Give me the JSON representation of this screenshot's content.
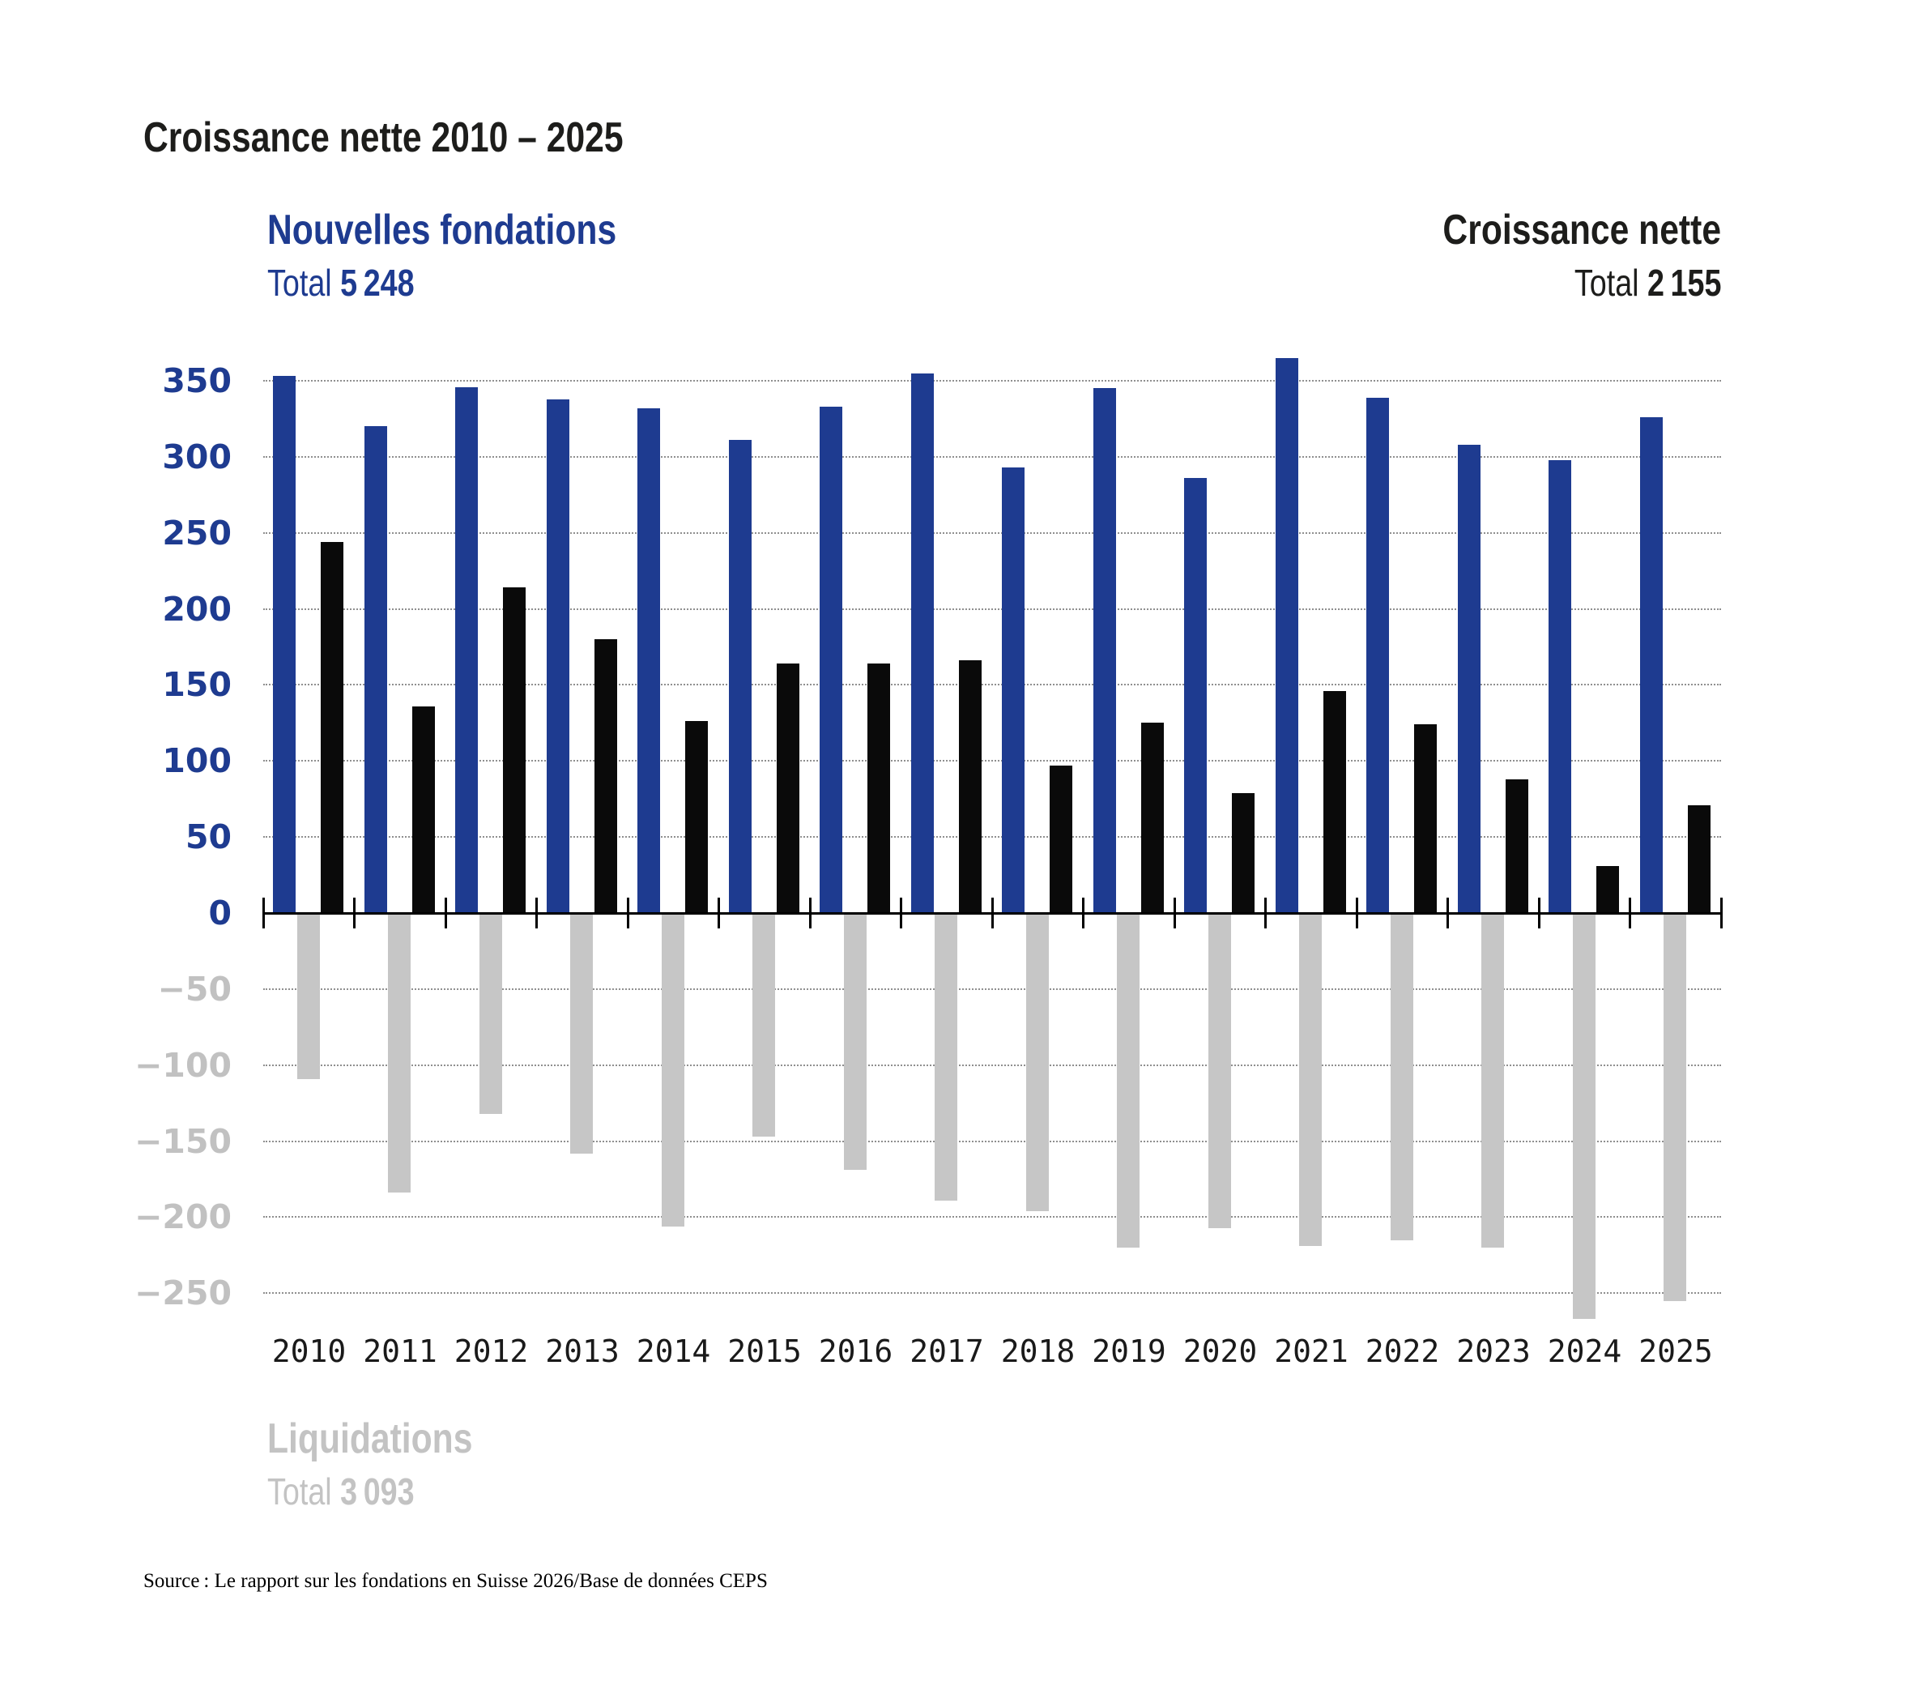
{
  "title": "Croissance nette 2010 – 2025",
  "legends": {
    "new": {
      "label": "Nouvelles fondations",
      "total_label": "Total",
      "total_value": "5 248"
    },
    "net": {
      "label": "Croissance nette",
      "total_label": "Total",
      "total_value": "2 155"
    },
    "liq": {
      "label": "Liquidations",
      "total_label": "Total",
      "total_value": "3 093"
    }
  },
  "source": "Source : Le rapport sur les fondations en Suisse 2026/Base de données CEPS",
  "colors": {
    "new": "#1e3b90",
    "net": "#0a0a0a",
    "liquidations": "#c6c6c6",
    "text_dark": "#1d1d1b",
    "liq_text": "#c3c3c3",
    "axis_label_positive": "#1e3b90",
    "axis_label_negative": "#c1c1c1",
    "grid": "#8f8f8f",
    "axis": "#000000",
    "year_label": "#1a1a1a"
  },
  "chart_data": {
    "type": "bar",
    "title": "Croissance nette 2010 – 2025",
    "xlabel": "",
    "ylabel": "",
    "grid": "horizontal-dotted",
    "ylim": [
      -270,
      365
    ],
    "yticks": [
      350,
      300,
      250,
      200,
      150,
      100,
      50,
      0,
      -50,
      -100,
      -150,
      -200,
      -250
    ],
    "categories": [
      "2010",
      "2011",
      "2012",
      "2013",
      "2014",
      "2015",
      "2016",
      "2017",
      "2018",
      "2019",
      "2020",
      "2021",
      "2022",
      "2023",
      "2024",
      "2025"
    ],
    "series": [
      {
        "name": "Nouvelles fondations",
        "key": "nouvelles-fondations",
        "color_key": "new",
        "total": 5248,
        "values": [
          353,
          320,
          346,
          338,
          332,
          311,
          333,
          355,
          293,
          345,
          286,
          365,
          339,
          308,
          298,
          326
        ]
      },
      {
        "name": "Liquidations",
        "key": "liquidations",
        "color_key": "liquidations",
        "total": 3093,
        "values": [
          -109,
          -184,
          -132,
          -158,
          -206,
          -147,
          -169,
          -189,
          -196,
          -220,
          -207,
          -219,
          -215,
          -220,
          -267,
          -255
        ]
      },
      {
        "name": "Croissance nette",
        "key": "croissance-nette",
        "color_key": "net",
        "total": 2155,
        "values": [
          244,
          136,
          214,
          180,
          126,
          164,
          164,
          166,
          97,
          125,
          79,
          146,
          124,
          88,
          31,
          71
        ]
      }
    ],
    "legend_position": "new: top-left, net: top-right, liquidations: bottom-left"
  }
}
